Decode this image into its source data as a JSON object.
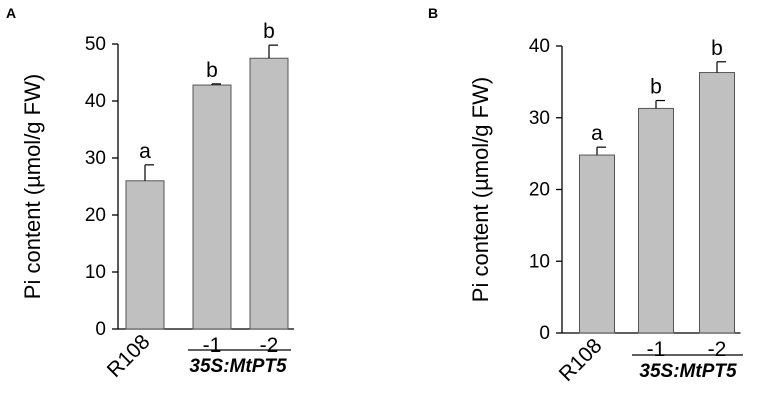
{
  "chart_data": [
    {
      "type": "bar",
      "panel_label": "A",
      "categories": [
        "R108",
        "-1",
        "-2"
      ],
      "values": [
        26.0,
        42.8,
        47.5
      ],
      "errors": [
        2.8,
        0.2,
        2.3
      ],
      "significance": [
        "a",
        "b",
        "b"
      ],
      "group_label": "35S:MtPT5",
      "ylabel": "Pi content (µmol/g FW)",
      "ylim": [
        0,
        50
      ],
      "yticks": [
        "0",
        "10",
        "20",
        "30",
        "40",
        "50"
      ],
      "bar_color": "#c0c0c0"
    },
    {
      "type": "bar",
      "panel_label": "B",
      "categories": [
        "R108",
        "-1",
        "-2"
      ],
      "values": [
        24.8,
        31.3,
        36.3
      ],
      "errors": [
        1.1,
        1.1,
        1.5
      ],
      "significance": [
        "a",
        "b",
        "b"
      ],
      "group_label": "35S:MtPT5",
      "ylabel": "Pi content (µmol/g FW)",
      "ylim": [
        0,
        40
      ],
      "yticks": [
        "0",
        "10",
        "20",
        "30",
        "40"
      ],
      "bar_color": "#c0c0c0"
    }
  ]
}
